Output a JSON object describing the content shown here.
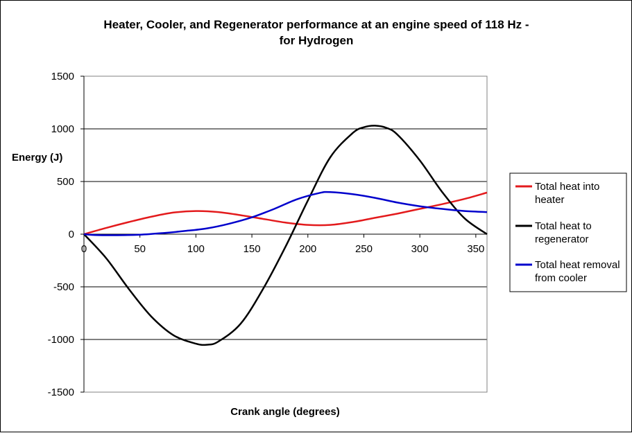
{
  "chart_data": {
    "type": "line",
    "title_line1": "Heater, Cooler, and Regenerator performance at an engine speed of 118 Hz -",
    "title_line2": "for Hydrogen",
    "xlabel": "Crank angle (degrees)",
    "ylabel": "Energy (J)",
    "xlim": [
      0,
      360
    ],
    "ylim": [
      -1500,
      1500
    ],
    "x_ticks": [
      "0",
      "50",
      "100",
      "150",
      "200",
      "250",
      "300",
      "350"
    ],
    "y_ticks": [
      "1500",
      "1000",
      "500",
      "0",
      "-500",
      "-1000",
      "-1500"
    ],
    "grid": "horizontal",
    "legend_position": "right",
    "series": [
      {
        "name_line1": "Total heat into",
        "name_line2": "heater",
        "color": "#e31a1c",
        "x": [
          0,
          20,
          40,
          60,
          80,
          100,
          120,
          140,
          160,
          180,
          200,
          220,
          240,
          260,
          280,
          300,
          320,
          340,
          360
        ],
        "y": [
          0,
          60,
          115,
          165,
          205,
          220,
          210,
          180,
          145,
          110,
          88,
          88,
          115,
          155,
          195,
          240,
          285,
          335,
          395
        ]
      },
      {
        "name_line1": "Total heat to",
        "name_line2": "regenerator",
        "color": "#000000",
        "x": [
          0,
          20,
          40,
          60,
          80,
          100,
          110,
          120,
          140,
          160,
          180,
          200,
          220,
          240,
          250,
          260,
          270,
          280,
          300,
          320,
          340,
          360
        ],
        "y": [
          0,
          -230,
          -520,
          -780,
          -960,
          -1040,
          -1050,
          -1020,
          -850,
          -520,
          -120,
          320,
          730,
          960,
          1015,
          1030,
          1010,
          945,
          700,
          400,
          150,
          0
        ]
      },
      {
        "name_line1": "Total heat removal",
        "name_line2": "from cooler",
        "color": "#0000cc",
        "x": [
          0,
          10,
          30,
          50,
          70,
          90,
          110,
          130,
          150,
          170,
          190,
          210,
          220,
          240,
          260,
          280,
          300,
          320,
          340,
          360
        ],
        "y": [
          0,
          -8,
          -10,
          -5,
          10,
          30,
          55,
          100,
          160,
          240,
          330,
          390,
          400,
          380,
          345,
          300,
          265,
          240,
          220,
          210
        ]
      }
    ]
  }
}
